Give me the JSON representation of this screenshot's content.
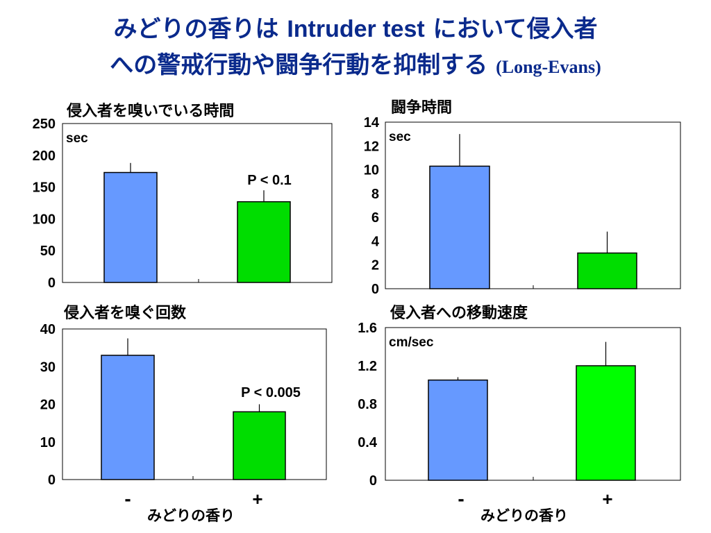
{
  "slide_title": {
    "line1_a": "みどりの香りは ",
    "line1_b": "Intruder test",
    "line1_c": " において侵入者",
    "line2_a": "への警戒行動や闘争行動を抑制する ",
    "line2_b": "(Long-Evans)"
  },
  "colors": {
    "control": "#6699ff",
    "scent_dark": "#00dd00",
    "scent_bright": "#00ff00",
    "title": "#0a2a8c"
  },
  "x_group_label": "みどりの香り",
  "chart_data": [
    {
      "type": "bar",
      "title": "侵入者を嗅いでいる時間",
      "unit": "sec",
      "categories": [
        "-",
        "+"
      ],
      "values": [
        173,
        127
      ],
      "errors": [
        15,
        18
      ],
      "ylim": [
        0,
        250
      ],
      "yticks": [
        "250",
        "200",
        "150",
        "100",
        "50",
        "0"
      ],
      "annotation": "P < 0.1"
    },
    {
      "type": "bar",
      "title": "闘争時間",
      "unit": "sec",
      "categories": [
        "-",
        "+"
      ],
      "values": [
        10.3,
        3.0
      ],
      "errors": [
        2.7,
        1.8
      ],
      "ylim": [
        0,
        14
      ],
      "yticks": [
        "14",
        "12",
        "10",
        "8",
        "6",
        "4",
        "2",
        "0"
      ]
    },
    {
      "type": "bar",
      "title": "侵入者を嗅ぐ回数",
      "unit": "",
      "categories": [
        "-",
        "+"
      ],
      "values": [
        33,
        18
      ],
      "errors": [
        4.5,
        2
      ],
      "ylim": [
        0,
        40
      ],
      "yticks": [
        "40",
        "30",
        "20",
        "10",
        "0"
      ],
      "annotation": "P < 0.005"
    },
    {
      "type": "bar",
      "title": "侵入者への移動速度",
      "unit": "cm/sec",
      "categories": [
        "-",
        "+"
      ],
      "values": [
        1.05,
        1.2
      ],
      "errors": [
        0.03,
        0.25
      ],
      "ylim": [
        0,
        1.6
      ],
      "yticks": [
        "1.6",
        "1.2",
        "0.8",
        "0.4",
        "0"
      ]
    }
  ]
}
